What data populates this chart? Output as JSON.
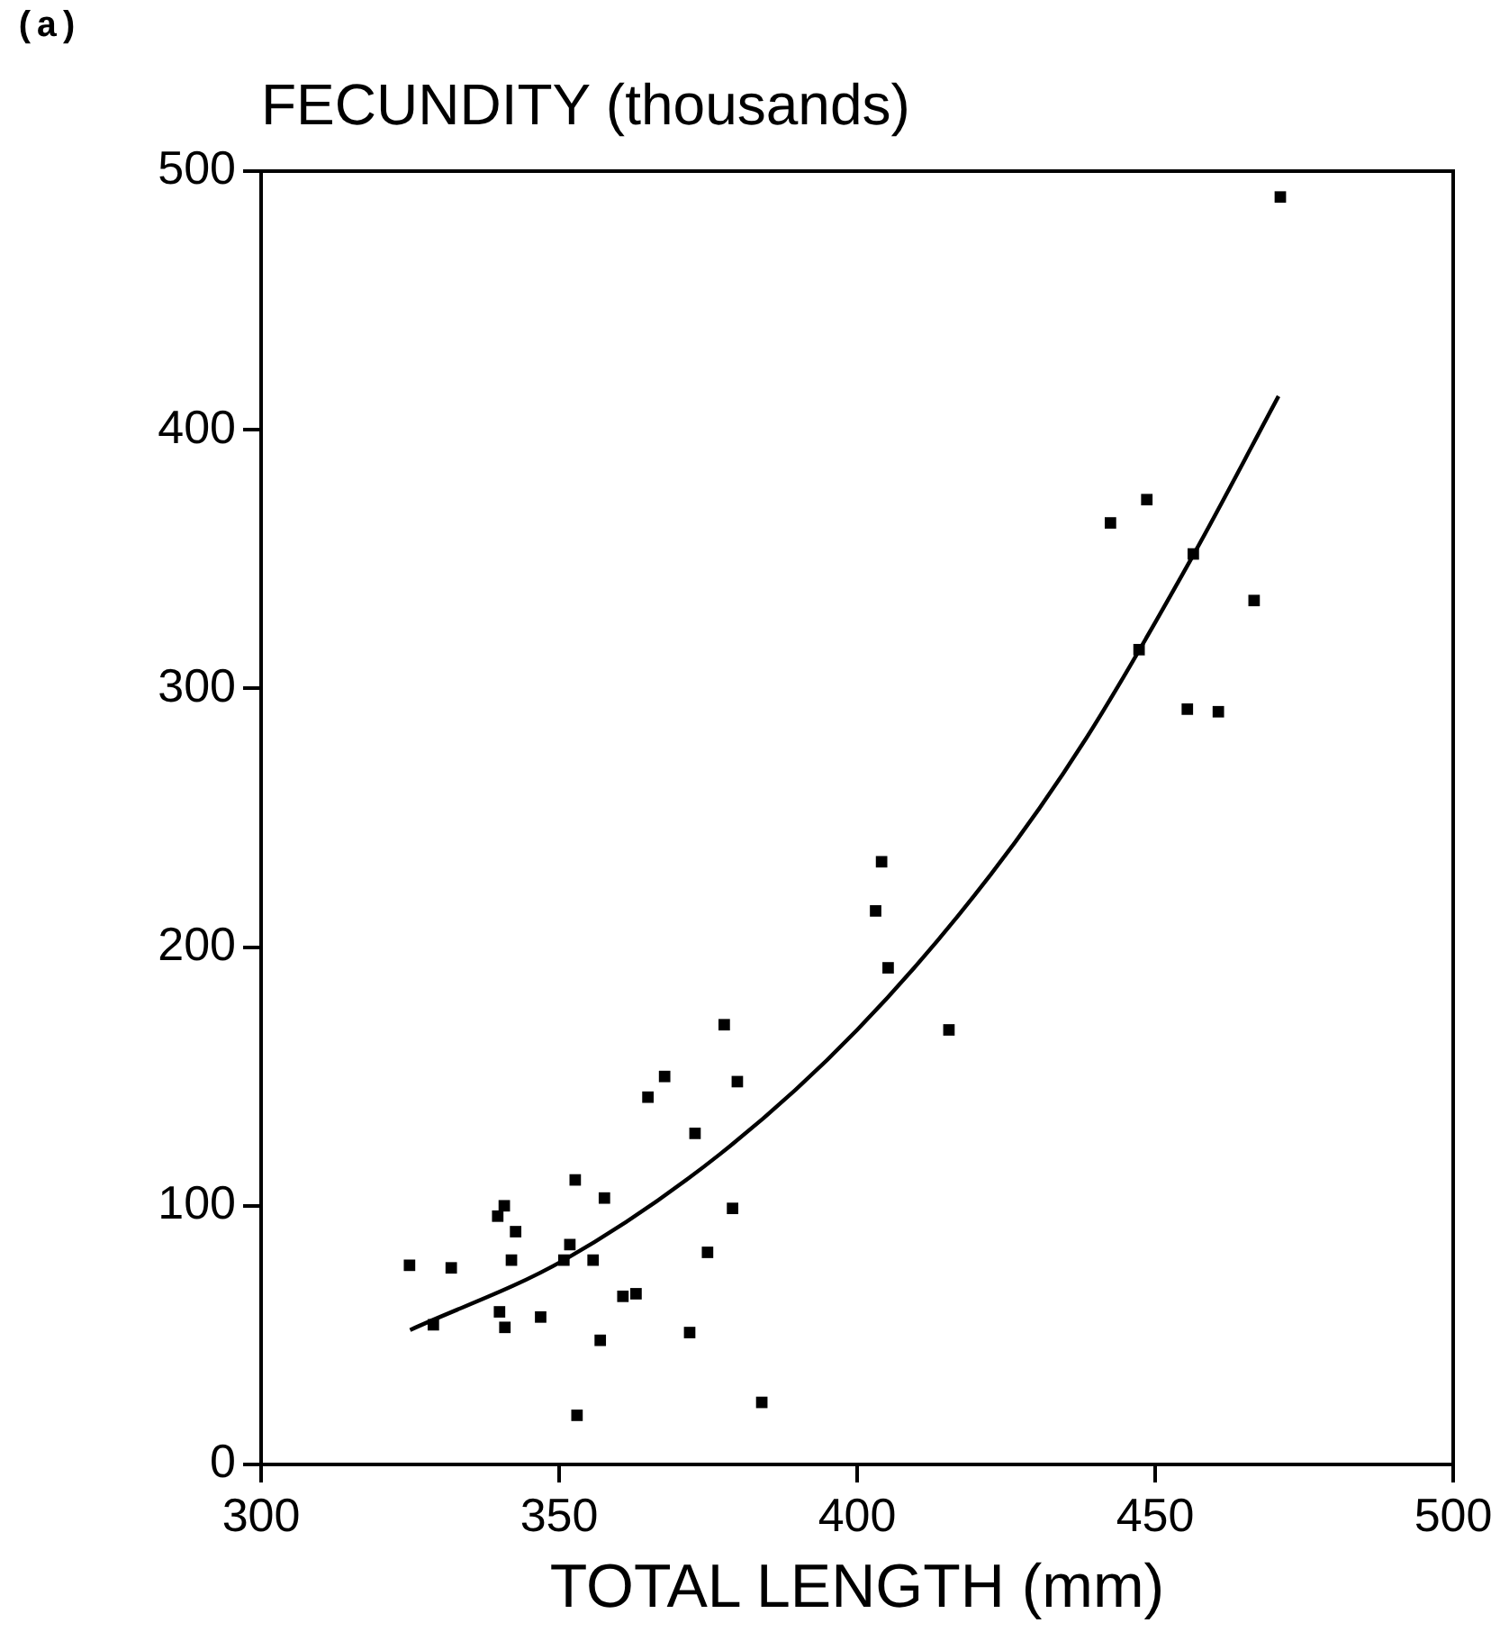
{
  "chart_data": {
    "type": "scatter",
    "title": "(a)",
    "ylabel": "FECUNDITY (thousands)",
    "xlabel": "TOTAL LENGTH (mm)",
    "xlim": [
      300,
      500
    ],
    "xticks": [
      300,
      350,
      400,
      450,
      500
    ],
    "ylim": [
      0,
      500
    ],
    "yticks": [
      0,
      100,
      200,
      300,
      400,
      500
    ],
    "grid": false,
    "legend": false,
    "marker": "square",
    "series": [
      {
        "color": "#000000",
        "x": [
          324.9,
          331.9,
          328.9,
          340,
          340.9,
          339.7,
          340.8,
          342.7,
          342,
          346.9,
          351.8,
          350.8,
          355.7,
          352.7,
          357.6,
          353,
          356.9,
          360.7,
          362.9,
          364.9,
          367.7,
          377.7,
          379.9,
          372.8,
          379.1,
          374.9,
          371.9,
          384,
          404.1,
          403.1,
          405.2,
          415.4,
          471,
          448.6,
          442.5,
          456.4,
          447.3,
          466.6,
          455.4,
          460.6
        ],
        "values": [
          77,
          76,
          54,
          59,
          53,
          96,
          100,
          90,
          79,
          57,
          85,
          79,
          79,
          110,
          103,
          19,
          48,
          65,
          66,
          142,
          150,
          170,
          148,
          128,
          99,
          82,
          51,
          24,
          233,
          214,
          192,
          168,
          490,
          373,
          364,
          352,
          315,
          334,
          292,
          291
        ]
      },
      {
        "type": "line",
        "color": "#000000",
        "marker": "none",
        "line_style": "solid",
        "x": [
          325,
          350.8,
          377,
          400,
          422.4,
          438.5,
          456.5,
          470.7
        ],
        "values": [
          52,
          79,
          120,
          168,
          228,
          281,
          352,
          413
        ]
      }
    ]
  }
}
